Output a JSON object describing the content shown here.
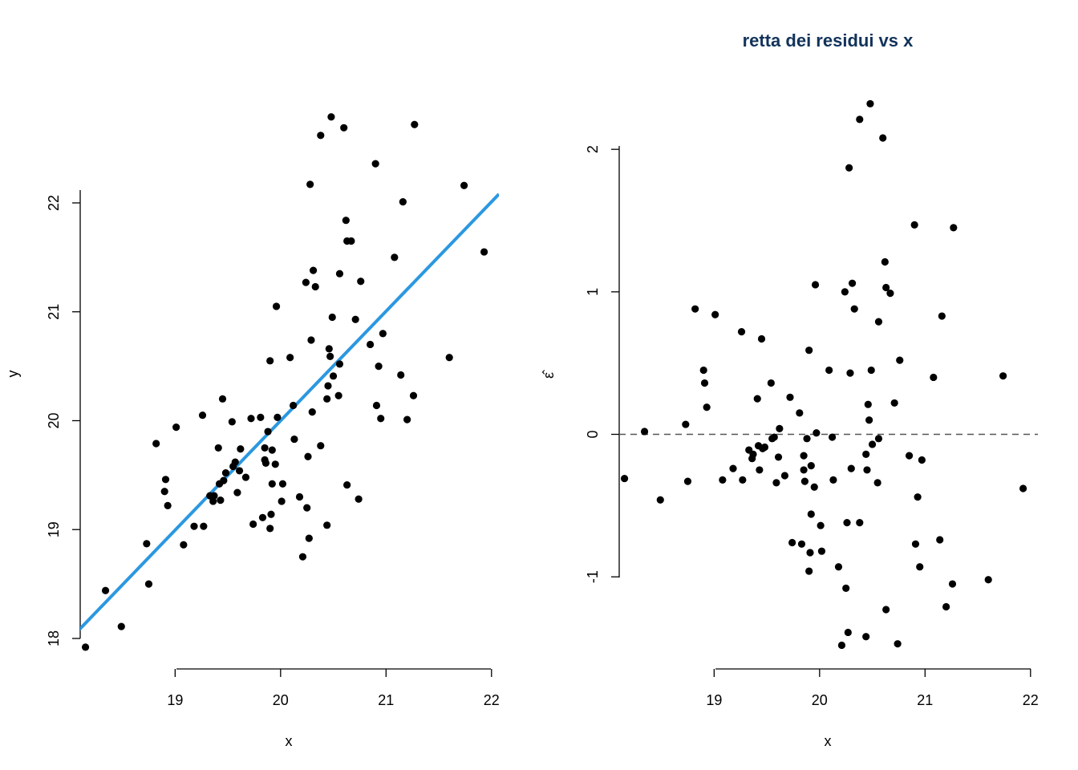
{
  "chart_data": [
    {
      "type": "scatter",
      "title": "",
      "xlabel": "x",
      "ylabel": "y",
      "xlim": [
        18.1,
        22.07
      ],
      "ylim": [
        18.0,
        22.95
      ],
      "xticks": [
        19,
        20,
        21,
        22
      ],
      "yticks": [
        18,
        19,
        20,
        21,
        22
      ],
      "series": [
        {
          "points": [
            [
              18.15,
              17.92
            ],
            [
              18.34,
              18.44
            ],
            [
              18.49,
              18.11
            ],
            [
              18.73,
              18.87
            ],
            [
              18.75,
              18.5
            ],
            [
              18.82,
              19.79
            ],
            [
              18.9,
              19.35
            ],
            [
              18.91,
              19.46
            ],
            [
              18.93,
              19.22
            ],
            [
              19.01,
              19.94
            ],
            [
              19.08,
              18.86
            ],
            [
              19.18,
              19.03
            ],
            [
              19.27,
              19.03
            ],
            [
              19.26,
              20.05
            ],
            [
              19.33,
              19.31
            ],
            [
              19.36,
              19.26
            ],
            [
              19.37,
              19.31
            ],
            [
              19.41,
              19.75
            ],
            [
              19.42,
              19.42
            ],
            [
              19.43,
              19.27
            ],
            [
              19.45,
              20.2
            ],
            [
              19.46,
              19.45
            ],
            [
              19.48,
              19.52
            ],
            [
              19.54,
              19.99
            ],
            [
              19.55,
              19.58
            ],
            [
              19.57,
              19.62
            ],
            [
              19.59,
              19.34
            ],
            [
              19.61,
              19.54
            ],
            [
              19.62,
              19.74
            ],
            [
              19.67,
              19.48
            ],
            [
              19.72,
              20.02
            ],
            [
              19.74,
              19.05
            ],
            [
              19.81,
              20.03
            ],
            [
              19.83,
              19.11
            ],
            [
              19.85,
              19.75
            ],
            [
              19.85,
              19.64
            ],
            [
              19.86,
              19.61
            ],
            [
              19.88,
              19.9
            ],
            [
              19.9,
              20.55
            ],
            [
              19.9,
              19.01
            ],
            [
              19.91,
              19.14
            ],
            [
              19.92,
              19.73
            ],
            [
              19.92,
              19.42
            ],
            [
              19.95,
              19.6
            ],
            [
              19.96,
              21.05
            ],
            [
              19.97,
              20.03
            ],
            [
              20.01,
              19.26
            ],
            [
              20.02,
              19.42
            ],
            [
              20.09,
              20.58
            ],
            [
              20.12,
              20.14
            ],
            [
              20.13,
              19.83
            ],
            [
              20.18,
              19.3
            ],
            [
              20.21,
              18.75
            ],
            [
              20.24,
              21.27
            ],
            [
              20.25,
              19.2
            ],
            [
              20.26,
              19.67
            ],
            [
              20.27,
              18.92
            ],
            [
              20.28,
              22.17
            ],
            [
              20.29,
              20.74
            ],
            [
              20.3,
              20.08
            ],
            [
              20.31,
              21.38
            ],
            [
              20.33,
              21.23
            ],
            [
              20.38,
              22.62
            ],
            [
              20.38,
              19.77
            ],
            [
              20.44,
              19.04
            ],
            [
              20.44,
              20.2
            ],
            [
              20.45,
              20.32
            ],
            [
              20.46,
              20.66
            ],
            [
              20.47,
              20.59
            ],
            [
              20.48,
              22.79
            ],
            [
              20.49,
              20.95
            ],
            [
              20.5,
              20.41
            ],
            [
              20.55,
              20.23
            ],
            [
              20.56,
              21.35
            ],
            [
              20.56,
              20.52
            ],
            [
              20.6,
              22.69
            ],
            [
              20.62,
              21.84
            ],
            [
              20.63,
              19.41
            ],
            [
              20.63,
              21.65
            ],
            [
              20.67,
              21.65
            ],
            [
              20.71,
              20.93
            ],
            [
              20.74,
              19.28
            ],
            [
              20.76,
              21.28
            ],
            [
              20.85,
              20.7
            ],
            [
              20.9,
              22.36
            ],
            [
              20.91,
              20.14
            ],
            [
              20.93,
              20.5
            ],
            [
              20.95,
              20.02
            ],
            [
              20.97,
              20.8
            ],
            [
              21.08,
              21.5
            ],
            [
              21.14,
              20.42
            ],
            [
              21.16,
              22.01
            ],
            [
              21.2,
              20.01
            ],
            [
              21.26,
              20.23
            ],
            [
              21.27,
              22.72
            ],
            [
              21.6,
              20.58
            ],
            [
              21.74,
              22.16
            ],
            [
              21.93,
              21.55
            ]
          ]
        }
      ],
      "fit_line": {
        "intercept": -0.1,
        "slope": 1.005,
        "color": "#2b98e0"
      },
      "point_color": "#000000"
    },
    {
      "type": "scatter",
      "title": "retta dei residui vs x",
      "title_color": "#12335a",
      "xlabel": "x",
      "ylabel": "ε̂",
      "xlim": [
        18.1,
        22.07
      ],
      "ylim": [
        -1.5,
        2.35
      ],
      "xticks": [
        19,
        20,
        21,
        22
      ],
      "yticks": [
        -1,
        0,
        1,
        2
      ],
      "hline": {
        "y": 0,
        "style": "dashed",
        "color": "#555555"
      },
      "series": [
        {
          "points": [
            [
              18.15,
              -0.31
            ],
            [
              18.34,
              0.02
            ],
            [
              18.49,
              -0.46
            ],
            [
              18.73,
              0.07
            ],
            [
              18.75,
              -0.33
            ],
            [
              18.82,
              0.88
            ],
            [
              18.9,
              0.45
            ],
            [
              18.91,
              0.36
            ],
            [
              18.93,
              0.19
            ],
            [
              19.01,
              0.84
            ],
            [
              19.08,
              -0.32
            ],
            [
              19.18,
              -0.24
            ],
            [
              19.27,
              -0.32
            ],
            [
              19.26,
              0.72
            ],
            [
              19.33,
              -0.11
            ],
            [
              19.36,
              -0.17
            ],
            [
              19.37,
              -0.14
            ],
            [
              19.41,
              0.25
            ],
            [
              19.42,
              -0.08
            ],
            [
              19.43,
              -0.25
            ],
            [
              19.45,
              0.67
            ],
            [
              19.46,
              -0.1
            ],
            [
              19.48,
              -0.09
            ],
            [
              19.54,
              0.36
            ],
            [
              19.55,
              -0.03
            ],
            [
              19.57,
              -0.02
            ],
            [
              19.59,
              -0.34
            ],
            [
              19.61,
              -0.16
            ],
            [
              19.62,
              0.04
            ],
            [
              19.67,
              -0.29
            ],
            [
              19.72,
              0.26
            ],
            [
              19.74,
              -0.76
            ],
            [
              19.81,
              0.15
            ],
            [
              19.83,
              -0.77
            ],
            [
              19.85,
              -0.15
            ],
            [
              19.85,
              -0.25
            ],
            [
              19.86,
              -0.33
            ],
            [
              19.88,
              -0.03
            ],
            [
              19.9,
              0.59
            ],
            [
              19.9,
              -0.96
            ],
            [
              19.91,
              -0.83
            ],
            [
              19.92,
              -0.22
            ],
            [
              19.92,
              -0.56
            ],
            [
              19.95,
              -0.37
            ],
            [
              19.96,
              1.05
            ],
            [
              19.97,
              0.01
            ],
            [
              20.01,
              -0.64
            ],
            [
              20.02,
              -0.82
            ],
            [
              20.09,
              0.45
            ],
            [
              20.12,
              -0.02
            ],
            [
              20.13,
              -0.32
            ],
            [
              20.18,
              -0.93
            ],
            [
              20.21,
              -1.48
            ],
            [
              20.24,
              1.0
            ],
            [
              20.25,
              -1.08
            ],
            [
              20.26,
              -0.62
            ],
            [
              20.27,
              -1.39
            ],
            [
              20.28,
              1.87
            ],
            [
              20.29,
              0.43
            ],
            [
              20.3,
              -0.24
            ],
            [
              20.31,
              1.06
            ],
            [
              20.33,
              0.88
            ],
            [
              20.38,
              2.21
            ],
            [
              20.38,
              -0.62
            ],
            [
              20.44,
              -1.42
            ],
            [
              20.44,
              -0.14
            ],
            [
              20.45,
              -0.25
            ],
            [
              20.46,
              0.21
            ],
            [
              20.47,
              0.1
            ],
            [
              20.48,
              2.32
            ],
            [
              20.49,
              0.45
            ],
            [
              20.5,
              -0.07
            ],
            [
              20.55,
              -0.34
            ],
            [
              20.56,
              0.79
            ],
            [
              20.56,
              -0.03
            ],
            [
              20.6,
              2.08
            ],
            [
              20.62,
              1.21
            ],
            [
              20.63,
              -1.23
            ],
            [
              20.63,
              1.03
            ],
            [
              20.67,
              0.99
            ],
            [
              20.71,
              0.22
            ],
            [
              20.74,
              -1.47
            ],
            [
              20.76,
              0.52
            ],
            [
              20.85,
              -0.15
            ],
            [
              20.9,
              1.47
            ],
            [
              20.91,
              -0.77
            ],
            [
              20.93,
              -0.44
            ],
            [
              20.95,
              -0.93
            ],
            [
              20.97,
              -0.18
            ],
            [
              21.08,
              0.4
            ],
            [
              21.14,
              -0.74
            ],
            [
              21.16,
              0.83
            ],
            [
              21.2,
              -1.21
            ],
            [
              21.26,
              -1.05
            ],
            [
              21.27,
              1.45
            ],
            [
              21.6,
              -1.02
            ],
            [
              21.74,
              0.41
            ],
            [
              21.93,
              -0.38
            ]
          ]
        }
      ],
      "point_color": "#000000"
    }
  ]
}
